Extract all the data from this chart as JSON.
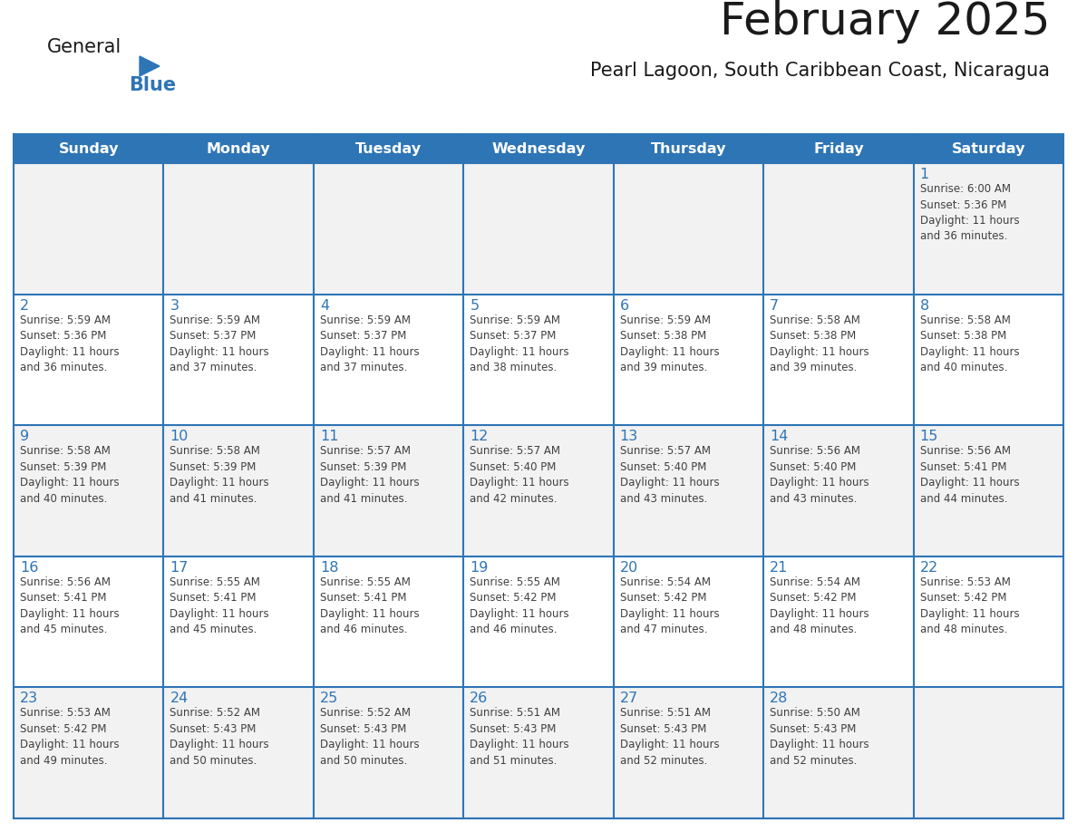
{
  "title": "February 2025",
  "subtitle": "Pearl Lagoon, South Caribbean Coast, Nicaragua",
  "logo_text_general": "General",
  "logo_text_blue": "Blue",
  "days_of_week": [
    "Sunday",
    "Monday",
    "Tuesday",
    "Wednesday",
    "Thursday",
    "Friday",
    "Saturday"
  ],
  "header_bg_color": "#2E75B6",
  "header_text_color": "#FFFFFF",
  "cell_bg_white": "#FFFFFF",
  "cell_bg_gray": "#F2F2F2",
  "cell_border_color": "#2E75B6",
  "cell_inner_border_color": "#CCCCCC",
  "day_number_color": "#2E75B6",
  "text_color": "#404040",
  "logo_general_color": "#1A1A1A",
  "logo_blue_color": "#2E75B6",
  "title_color": "#1A1A1A",
  "subtitle_color": "#1A1A1A",
  "calendar_data": [
    [
      null,
      null,
      null,
      null,
      null,
      null,
      {
        "day": 1,
        "sunrise": "6:00 AM",
        "sunset": "5:36 PM",
        "daylight": "11 hours\nand 36 minutes."
      }
    ],
    [
      {
        "day": 2,
        "sunrise": "5:59 AM",
        "sunset": "5:36 PM",
        "daylight": "11 hours\nand 36 minutes."
      },
      {
        "day": 3,
        "sunrise": "5:59 AM",
        "sunset": "5:37 PM",
        "daylight": "11 hours\nand 37 minutes."
      },
      {
        "day": 4,
        "sunrise": "5:59 AM",
        "sunset": "5:37 PM",
        "daylight": "11 hours\nand 37 minutes."
      },
      {
        "day": 5,
        "sunrise": "5:59 AM",
        "sunset": "5:37 PM",
        "daylight": "11 hours\nand 38 minutes."
      },
      {
        "day": 6,
        "sunrise": "5:59 AM",
        "sunset": "5:38 PM",
        "daylight": "11 hours\nand 39 minutes."
      },
      {
        "day": 7,
        "sunrise": "5:58 AM",
        "sunset": "5:38 PM",
        "daylight": "11 hours\nand 39 minutes."
      },
      {
        "day": 8,
        "sunrise": "5:58 AM",
        "sunset": "5:38 PM",
        "daylight": "11 hours\nand 40 minutes."
      }
    ],
    [
      {
        "day": 9,
        "sunrise": "5:58 AM",
        "sunset": "5:39 PM",
        "daylight": "11 hours\nand 40 minutes."
      },
      {
        "day": 10,
        "sunrise": "5:58 AM",
        "sunset": "5:39 PM",
        "daylight": "11 hours\nand 41 minutes."
      },
      {
        "day": 11,
        "sunrise": "5:57 AM",
        "sunset": "5:39 PM",
        "daylight": "11 hours\nand 41 minutes."
      },
      {
        "day": 12,
        "sunrise": "5:57 AM",
        "sunset": "5:40 PM",
        "daylight": "11 hours\nand 42 minutes."
      },
      {
        "day": 13,
        "sunrise": "5:57 AM",
        "sunset": "5:40 PM",
        "daylight": "11 hours\nand 43 minutes."
      },
      {
        "day": 14,
        "sunrise": "5:56 AM",
        "sunset": "5:40 PM",
        "daylight": "11 hours\nand 43 minutes."
      },
      {
        "day": 15,
        "sunrise": "5:56 AM",
        "sunset": "5:41 PM",
        "daylight": "11 hours\nand 44 minutes."
      }
    ],
    [
      {
        "day": 16,
        "sunrise": "5:56 AM",
        "sunset": "5:41 PM",
        "daylight": "11 hours\nand 45 minutes."
      },
      {
        "day": 17,
        "sunrise": "5:55 AM",
        "sunset": "5:41 PM",
        "daylight": "11 hours\nand 45 minutes."
      },
      {
        "day": 18,
        "sunrise": "5:55 AM",
        "sunset": "5:41 PM",
        "daylight": "11 hours\nand 46 minutes."
      },
      {
        "day": 19,
        "sunrise": "5:55 AM",
        "sunset": "5:42 PM",
        "daylight": "11 hours\nand 46 minutes."
      },
      {
        "day": 20,
        "sunrise": "5:54 AM",
        "sunset": "5:42 PM",
        "daylight": "11 hours\nand 47 minutes."
      },
      {
        "day": 21,
        "sunrise": "5:54 AM",
        "sunset": "5:42 PM",
        "daylight": "11 hours\nand 48 minutes."
      },
      {
        "day": 22,
        "sunrise": "5:53 AM",
        "sunset": "5:42 PM",
        "daylight": "11 hours\nand 48 minutes."
      }
    ],
    [
      {
        "day": 23,
        "sunrise": "5:53 AM",
        "sunset": "5:42 PM",
        "daylight": "11 hours\nand 49 minutes."
      },
      {
        "day": 24,
        "sunrise": "5:52 AM",
        "sunset": "5:43 PM",
        "daylight": "11 hours\nand 50 minutes."
      },
      {
        "day": 25,
        "sunrise": "5:52 AM",
        "sunset": "5:43 PM",
        "daylight": "11 hours\nand 50 minutes."
      },
      {
        "day": 26,
        "sunrise": "5:51 AM",
        "sunset": "5:43 PM",
        "daylight": "11 hours\nand 51 minutes."
      },
      {
        "day": 27,
        "sunrise": "5:51 AM",
        "sunset": "5:43 PM",
        "daylight": "11 hours\nand 52 minutes."
      },
      {
        "day": 28,
        "sunrise": "5:50 AM",
        "sunset": "5:43 PM",
        "daylight": "11 hours\nand 52 minutes."
      },
      null
    ]
  ],
  "row_bg_colors": [
    "#F2F2F2",
    "#FFFFFF",
    "#F2F2F2",
    "#FFFFFF",
    "#F2F2F2"
  ]
}
